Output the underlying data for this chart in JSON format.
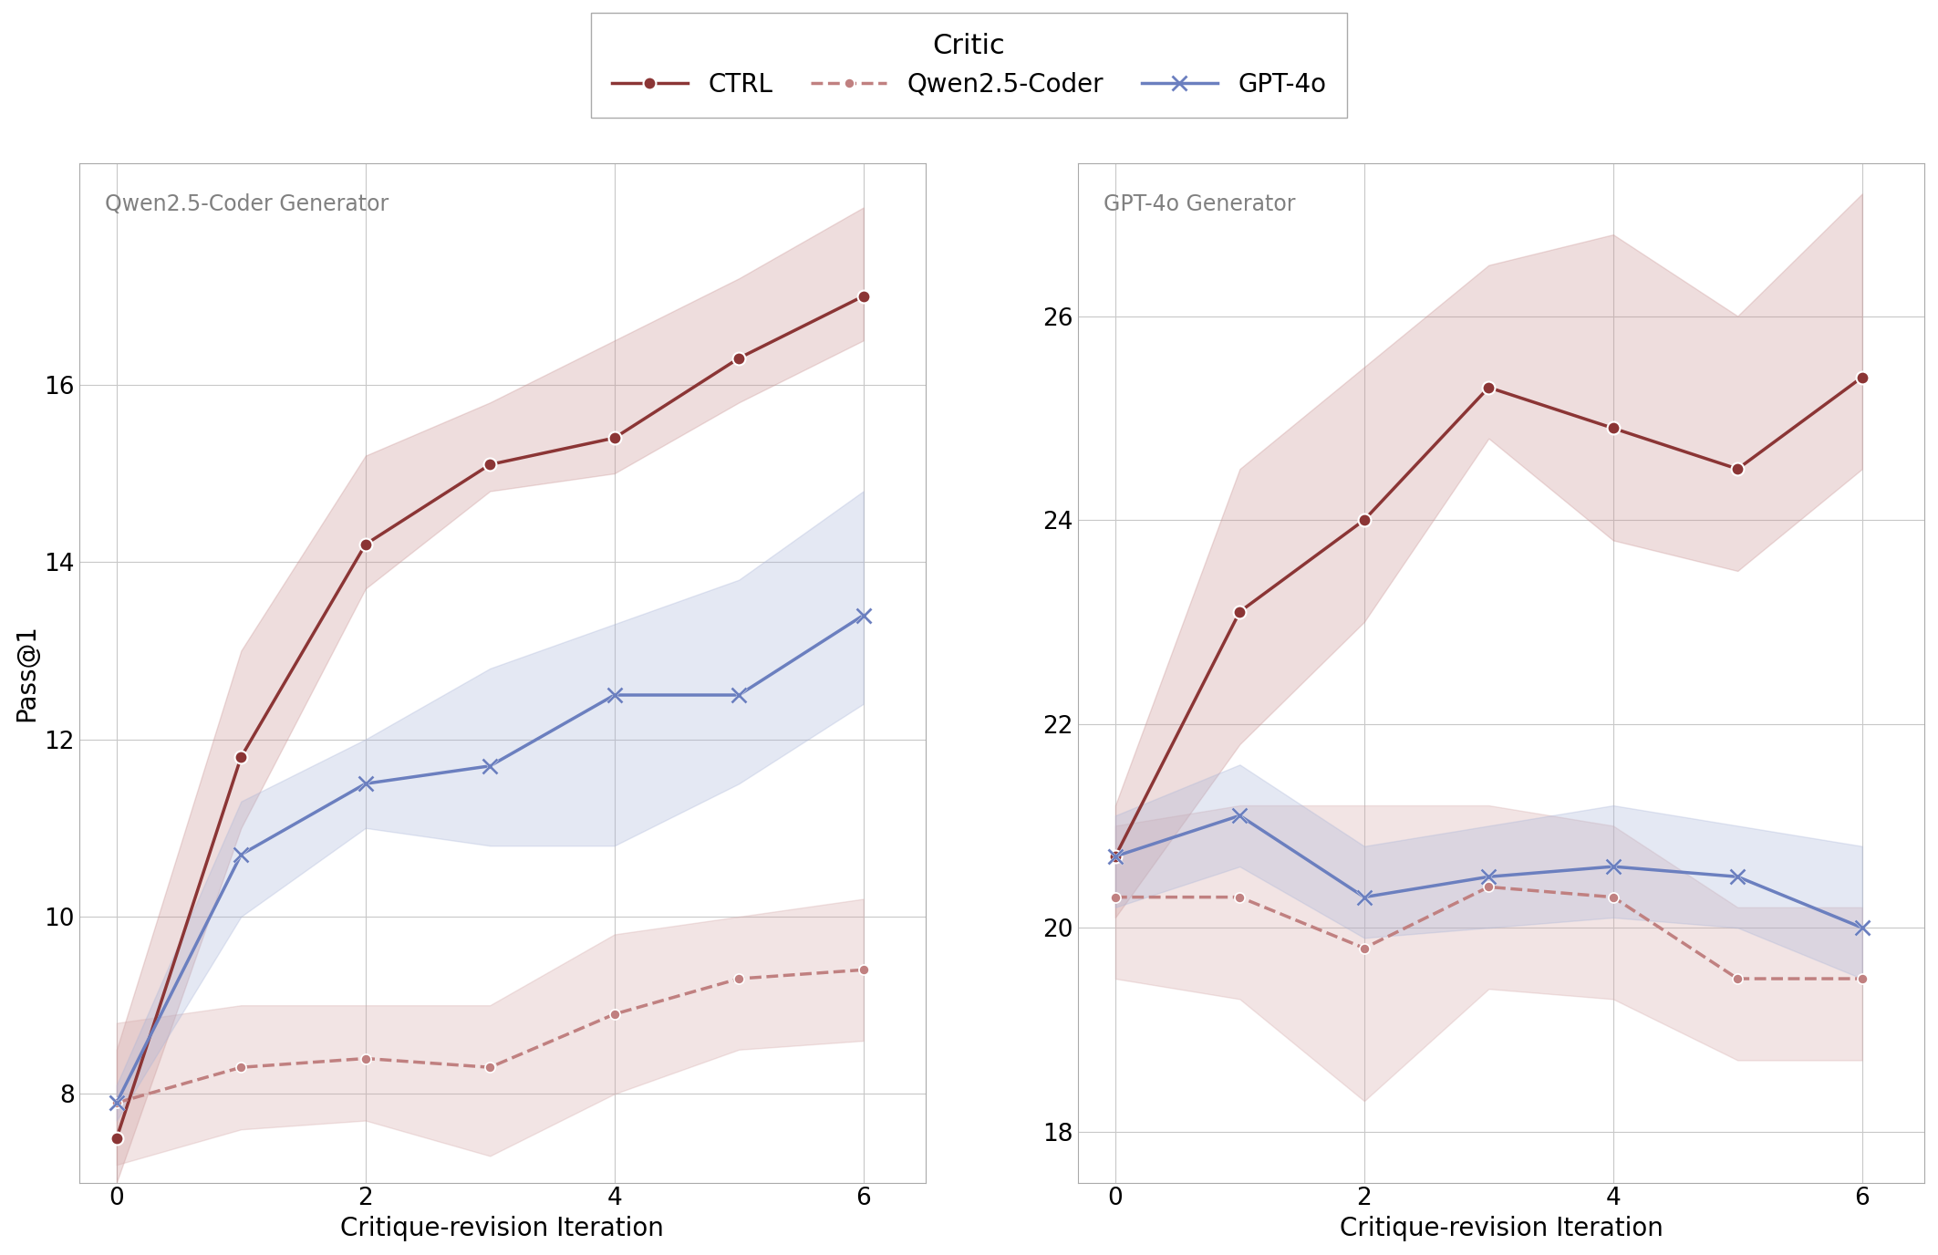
{
  "left_panel_title": "Qwen2.5-Coder Generator",
  "right_panel_title": "GPT-4o Generator",
  "xlabel": "Critique-revision Iteration",
  "ylabel": "Pass@1",
  "legend_title": "Critic",
  "x": [
    0,
    1,
    2,
    3,
    4,
    5,
    6
  ],
  "left_ctrl_mean": [
    7.5,
    11.8,
    14.2,
    15.1,
    15.4,
    16.3,
    17.0
  ],
  "left_ctrl_lo": [
    7.0,
    11.0,
    13.7,
    14.8,
    15.0,
    15.8,
    16.5
  ],
  "left_ctrl_hi": [
    8.5,
    13.0,
    15.2,
    15.8,
    16.5,
    17.2,
    18.0
  ],
  "left_qwen_mean": [
    7.9,
    8.3,
    8.4,
    8.3,
    8.9,
    9.3,
    9.4
  ],
  "left_qwen_lo": [
    7.2,
    7.6,
    7.7,
    7.3,
    8.0,
    8.5,
    8.6
  ],
  "left_qwen_hi": [
    8.8,
    9.0,
    9.0,
    9.0,
    9.8,
    10.0,
    10.2
  ],
  "left_gpt_mean": [
    7.9,
    10.7,
    11.5,
    11.7,
    12.5,
    12.5,
    13.4
  ],
  "left_gpt_lo": [
    7.7,
    10.0,
    11.0,
    10.8,
    10.8,
    11.5,
    12.4
  ],
  "left_gpt_hi": [
    8.1,
    11.3,
    12.0,
    12.8,
    13.3,
    13.8,
    14.8
  ],
  "right_ctrl_mean": [
    20.7,
    23.1,
    24.0,
    25.3,
    24.9,
    24.5,
    25.4
  ],
  "right_ctrl_lo": [
    20.1,
    21.8,
    23.0,
    24.8,
    23.8,
    23.5,
    24.5
  ],
  "right_ctrl_hi": [
    21.2,
    24.5,
    25.5,
    26.5,
    26.8,
    26.0,
    27.2
  ],
  "right_qwen_mean": [
    20.3,
    20.3,
    19.8,
    20.4,
    20.3,
    19.5,
    19.5
  ],
  "right_qwen_lo": [
    19.5,
    19.3,
    18.3,
    19.4,
    19.3,
    18.7,
    18.7
  ],
  "right_qwen_hi": [
    21.0,
    21.2,
    21.2,
    21.2,
    21.0,
    20.2,
    20.2
  ],
  "right_gpt_mean": [
    20.7,
    21.1,
    20.3,
    20.5,
    20.6,
    20.5,
    20.0
  ],
  "right_gpt_lo": [
    20.2,
    20.6,
    19.9,
    20.0,
    20.1,
    20.0,
    19.5
  ],
  "right_gpt_hi": [
    21.1,
    21.6,
    20.8,
    21.0,
    21.2,
    21.0,
    20.8
  ],
  "ctrl_color": "#8B3535",
  "qwen_color": "#C08080",
  "gpt_color": "#6B7FBF",
  "ctrl_fill": "#C89090",
  "qwen_fill": "#D4A8A8",
  "gpt_fill": "#A8B4D8",
  "left_ylim": [
    7.0,
    18.5
  ],
  "left_yticks": [
    8,
    10,
    12,
    14,
    16
  ],
  "right_ylim": [
    17.5,
    27.5
  ],
  "right_yticks": [
    18,
    20,
    22,
    24,
    26
  ],
  "xticks": [
    0,
    2,
    4,
    6
  ],
  "xlim": [
    -0.3,
    6.5
  ],
  "bg_color": "#FFFFFF",
  "label_fontsize": 20,
  "tick_fontsize": 19,
  "legend_fontsize": 20,
  "panel_label_fontsize": 17,
  "line_width": 2.5,
  "marker_size": 10,
  "fill_alpha": 0.3
}
